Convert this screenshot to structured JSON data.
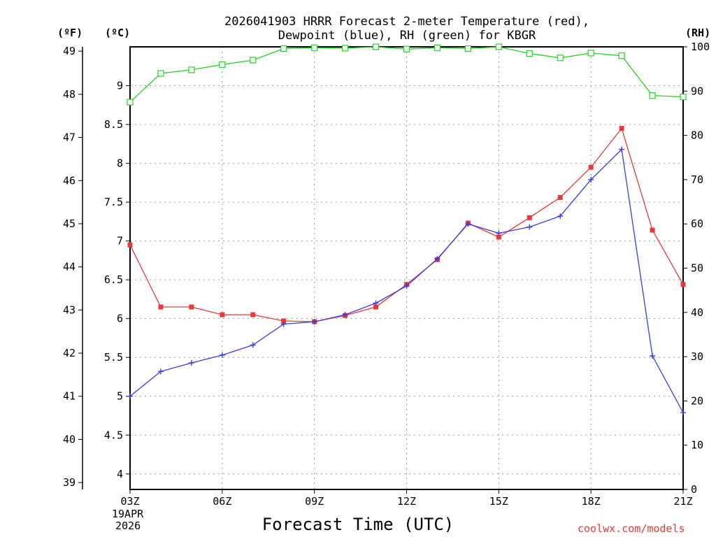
{
  "chart_data": {
    "type": "line",
    "title": "2026041903 HRRR Forecast 2-meter Temperature (red),",
    "subtitle": "Dewpoint (blue), RH (green) for KBGR",
    "xlabel": "Forecast Time (UTC)",
    "left_outer_unit": "(ºF)",
    "left_inner_unit": "(ºC)",
    "right_unit": "(RH)",
    "date_label": [
      "19APR",
      "2026"
    ],
    "credit": "coolwx.com/models",
    "x": [
      3,
      4,
      5,
      6,
      7,
      8,
      9,
      10,
      11,
      12,
      13,
      14,
      15,
      16,
      17,
      18,
      19,
      20,
      21
    ],
    "x_ticks": [
      3,
      6,
      9,
      12,
      15,
      18,
      21
    ],
    "x_tick_labels": [
      "03Z",
      "06Z",
      "09Z",
      "12Z",
      "15Z",
      "18Z",
      "21Z"
    ],
    "xlim": [
      3,
      21
    ],
    "ylim_c": [
      3.8,
      9.5
    ],
    "ylim_f": [
      38.84,
      49.1
    ],
    "ylim_rh": [
      0,
      100
    ],
    "yticks_c": [
      "4",
      "4.5",
      "5",
      "5.5",
      "6",
      "6.5",
      "7",
      "7.5",
      "8",
      "8.5",
      "9"
    ],
    "yticks_f": [
      "39",
      "40",
      "41",
      "42",
      "43",
      "44",
      "45",
      "46",
      "47",
      "48",
      "49"
    ],
    "yticks_rh": [
      "0",
      "10",
      "20",
      "30",
      "40",
      "50",
      "60",
      "70",
      "80",
      "90",
      "100"
    ],
    "grid": true,
    "series": [
      {
        "name": "Temperature",
        "axis": "c",
        "color": "#e53a3a",
        "marker": "filled-square",
        "values": [
          6.95,
          6.15,
          6.15,
          6.05,
          6.05,
          5.97,
          5.96,
          6.04,
          6.15,
          6.44,
          6.76,
          7.23,
          7.05,
          7.3,
          7.56,
          7.95,
          8.45,
          7.14,
          6.44
        ]
      },
      {
        "name": "Dewpoint",
        "axis": "c",
        "color": "#3a3ae5",
        "marker": "plus",
        "values": [
          5.0,
          5.32,
          5.43,
          5.53,
          5.66,
          5.93,
          5.96,
          6.05,
          6.2,
          6.42,
          6.77,
          7.22,
          7.1,
          7.18,
          7.32,
          7.79,
          8.18,
          5.52,
          4.79
        ]
      },
      {
        "name": "RH",
        "axis": "rh",
        "color": "#22d622",
        "marker": "open-square",
        "values": [
          87.5,
          94.0,
          94.8,
          96.0,
          97.0,
          99.6,
          99.8,
          99.7,
          100.0,
          99.5,
          99.8,
          99.6,
          100.0,
          98.5,
          97.5,
          98.6,
          98.0,
          89.0,
          88.7
        ]
      }
    ]
  }
}
